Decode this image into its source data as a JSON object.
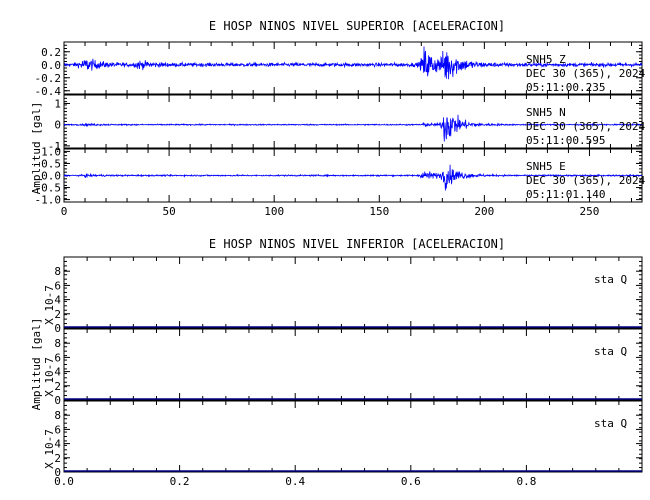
{
  "figure": {
    "top_title": "E HOSP NINOS NIVEL SUPERIOR [ACELERACION]",
    "bottom_title": "E HOSP NINOS NIVEL INFERIOR [ACELERACION]",
    "top_ylabel": "Amplitud [gal]",
    "bottom_ylabel": "Amplitud [gal]",
    "bottom_scale_label": "X 10-7",
    "trace_color": "#0000ff",
    "flat_color": "#000080"
  },
  "chart_data": [
    {
      "type": "line",
      "title": "E HOSP NINOS NIVEL SUPERIOR [ACELERACION]",
      "ylabel": "Amplitud [gal]",
      "xlim": [
        0,
        275
      ],
      "x_ticks": [
        "0",
        "50",
        "100",
        "150",
        "200",
        "250"
      ],
      "series": [
        {
          "name": "SNH5  Z",
          "date": "DEC 30 (365), 2024",
          "time": "05:11:00.235",
          "ylim": [
            -0.45,
            0.35
          ],
          "y_ticks": [
            "0.2",
            "0.0",
            "-0.2",
            "-0.4"
          ],
          "noise_amplitude": 0.03,
          "peak_amplitude": 0.3,
          "bursts": [
            [
              8,
              0.07
            ],
            [
              11,
              0.05
            ],
            [
              35,
              0.06
            ],
            [
              171,
              0.3
            ],
            [
              181,
              0.3
            ]
          ]
        },
        {
          "name": "SNH5  N",
          "date": "DEC 30 (365), 2024",
          "time": "05:11:00.595",
          "ylim": [
            -1.1,
            1.4
          ],
          "y_ticks": [
            "1",
            "0",
            "-1"
          ],
          "noise_amplitude": 0.03,
          "peak_amplitude": 1.05,
          "bursts": [
            [
              10,
              0.05
            ],
            [
              171,
              0.08
            ],
            [
              181,
              1.05
            ]
          ]
        },
        {
          "name": "SNH5  E",
          "date": "DEC 30 (365), 2024",
          "time": "05:11:01.140",
          "ylim": [
            -1.1,
            1.1
          ],
          "y_ticks": [
            "1.0",
            "0.5",
            "0.0",
            "-0.5",
            "-1.0"
          ],
          "noise_amplitude": 0.03,
          "peak_amplitude": 0.55,
          "bursts": [
            [
              10,
              0.05
            ],
            [
              171,
              0.25
            ],
            [
              181,
              0.55
            ]
          ]
        }
      ]
    },
    {
      "type": "line",
      "title": "E HOSP NINOS NIVEL INFERIOR [ACELERACION]",
      "ylabel": "Amplitud [gal]",
      "scale_label": "X 10-7",
      "xlim": [
        0,
        1
      ],
      "x_ticks": [
        "0.0",
        "0.2",
        "0.4",
        "0.6",
        "0.8"
      ],
      "series": [
        {
          "name": "sta  Q",
          "ylim": [
            0,
            10
          ],
          "y_ticks": [
            "8",
            "6",
            "4",
            "2",
            "0"
          ],
          "values": [
            0,
            0
          ]
        },
        {
          "name": "sta  Q",
          "ylim": [
            0,
            10
          ],
          "y_ticks": [
            "8",
            "6",
            "4",
            "2",
            "0"
          ],
          "values": [
            0,
            0
          ]
        },
        {
          "name": "sta  Q",
          "ylim": [
            0,
            10
          ],
          "y_ticks": [
            "8",
            "6",
            "4",
            "2",
            "0"
          ],
          "values": [
            0,
            0
          ]
        }
      ]
    }
  ]
}
